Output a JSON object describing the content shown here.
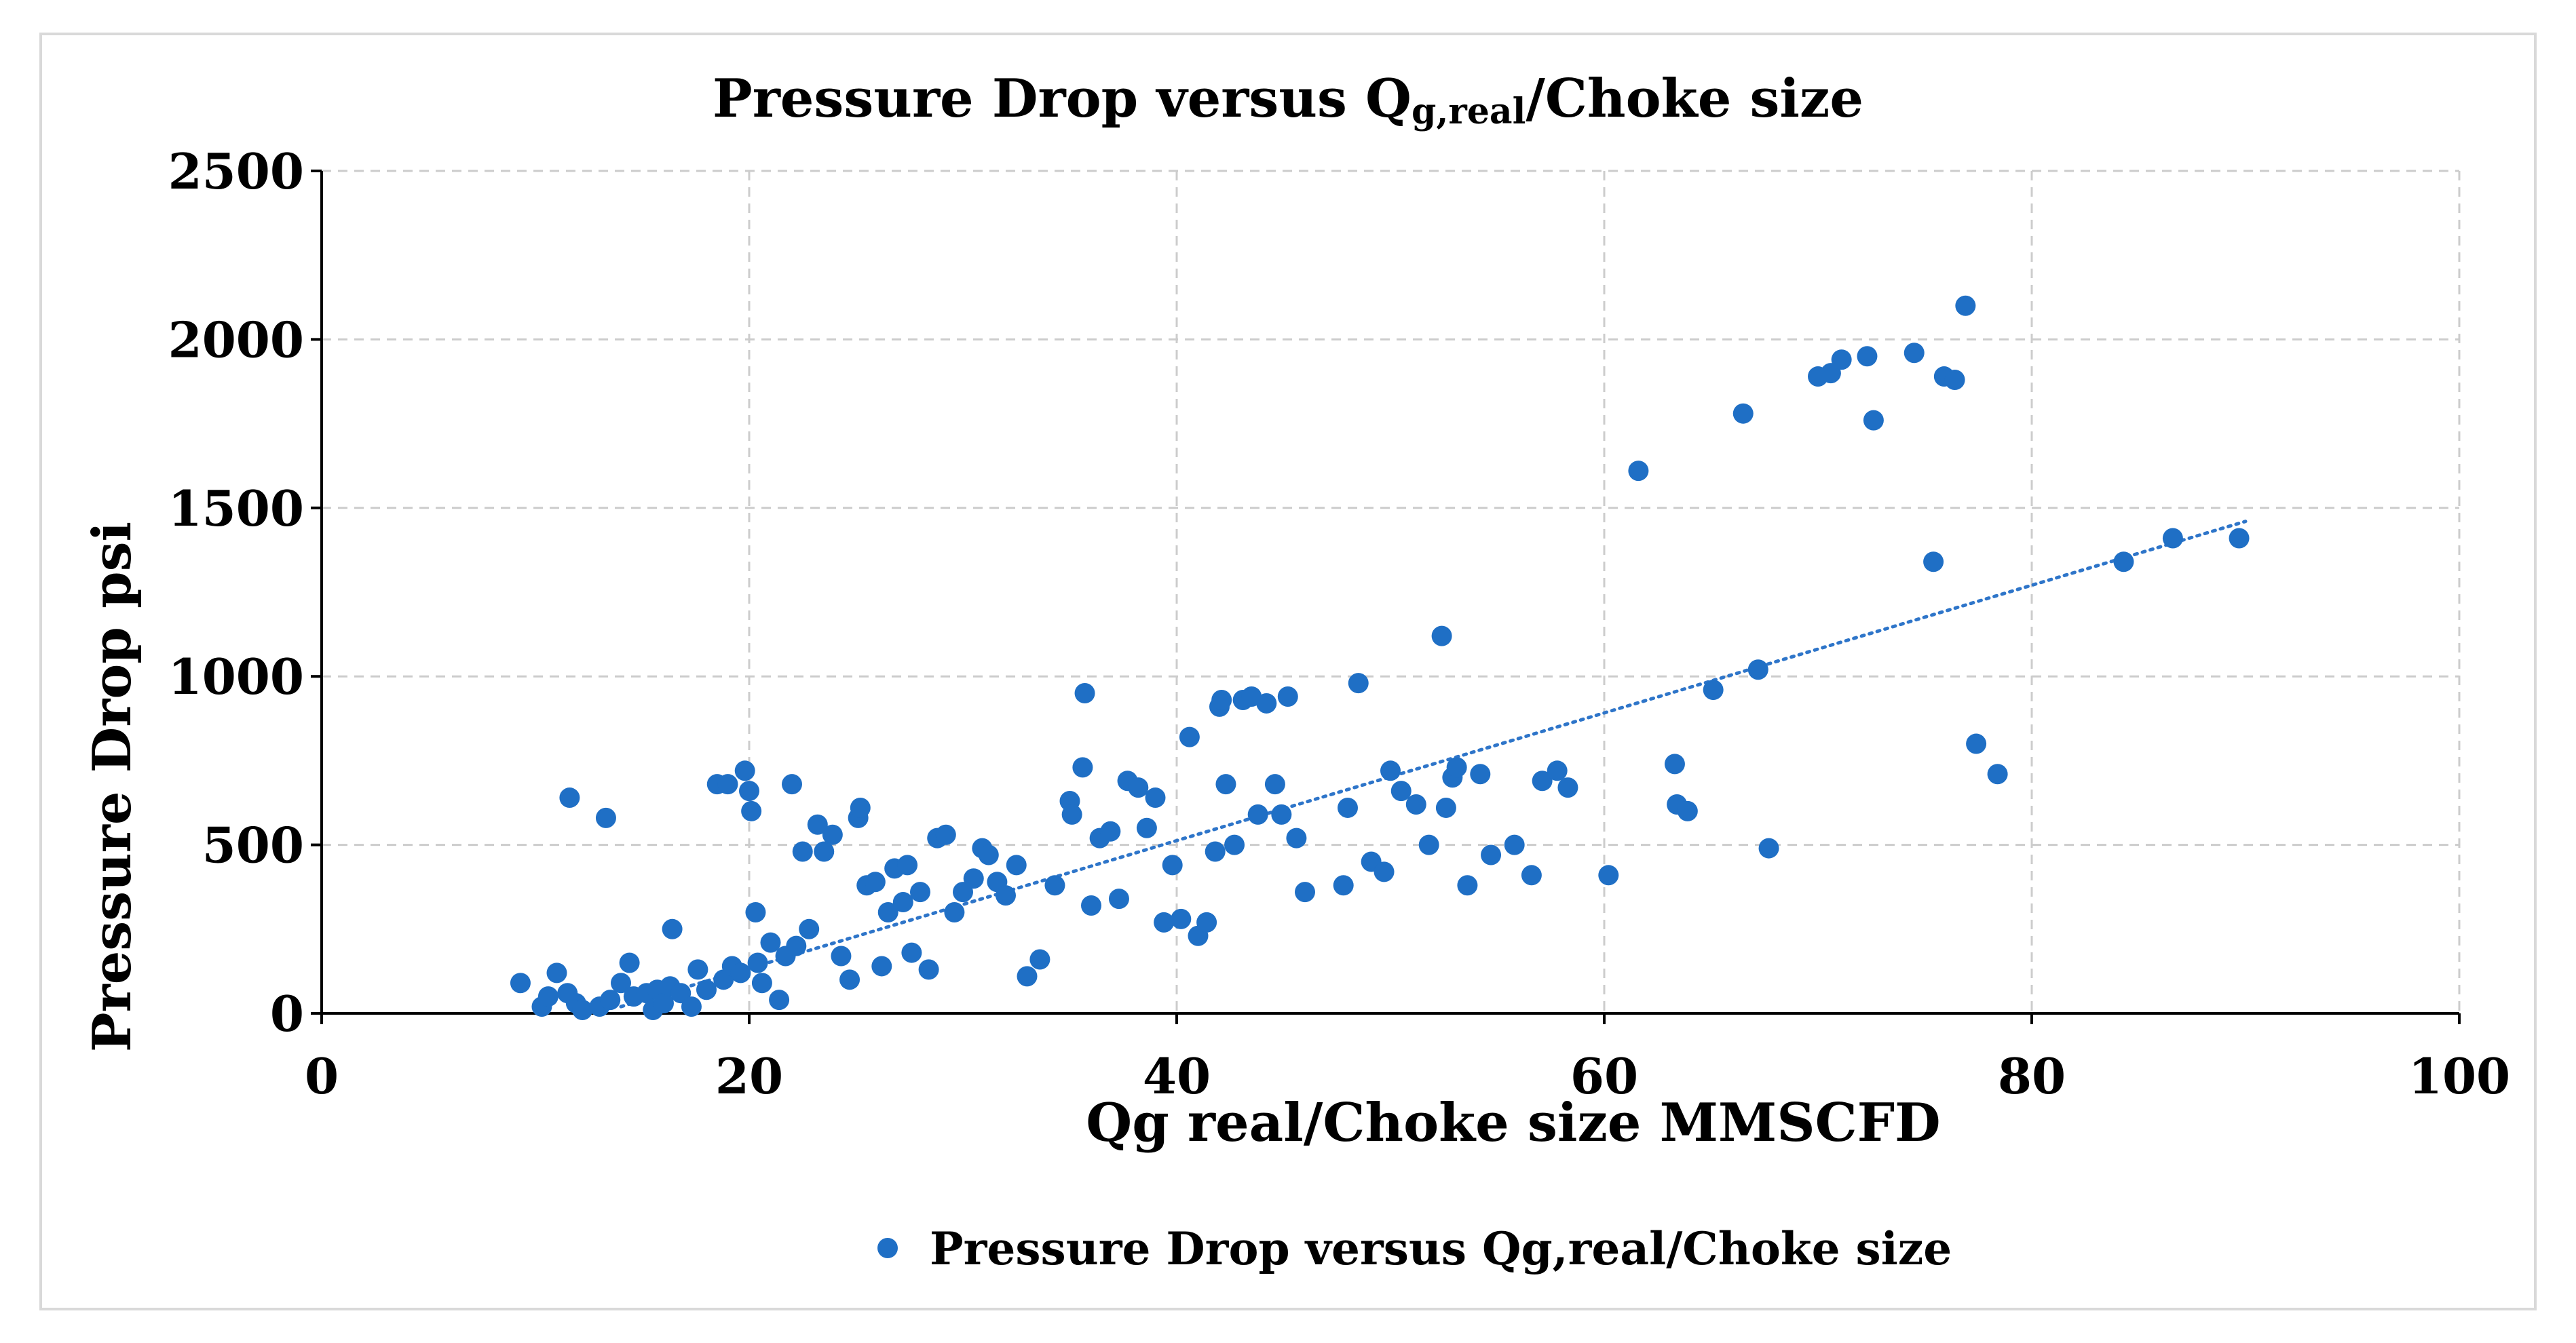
{
  "chart_data": {
    "type": "scatter",
    "title": "Pressure Drop versus Q",
    "title_subscript": "g,real",
    "title_suffix": "/Choke size",
    "xlabel": "Qg real/Choke size MMSCFD",
    "ylabel": "Pressure Drop psi",
    "xlim": [
      0,
      100
    ],
    "ylim": [
      0,
      2500
    ],
    "xticks": [
      0,
      20,
      40,
      60,
      80,
      100
    ],
    "yticks": [
      0,
      500,
      1000,
      1500,
      2000,
      2500
    ],
    "grid": true,
    "legend_position": "bottom",
    "colors": {
      "marker": "#1f6fc5",
      "trend": "#2e75c9",
      "grid": "#cccccc",
      "axis": "#000000"
    },
    "series": [
      {
        "name": "Pressure Drop versus Qg,real/Choke size",
        "points": [
          [
            9.3,
            90
          ],
          [
            10.3,
            20
          ],
          [
            10.6,
            50
          ],
          [
            11.0,
            120
          ],
          [
            11.5,
            60
          ],
          [
            11.6,
            640
          ],
          [
            11.9,
            30
          ],
          [
            12.2,
            10
          ],
          [
            13.0,
            20
          ],
          [
            13.3,
            580
          ],
          [
            13.5,
            40
          ],
          [
            14.0,
            90
          ],
          [
            14.4,
            150
          ],
          [
            14.6,
            50
          ],
          [
            15.2,
            60
          ],
          [
            15.5,
            10
          ],
          [
            15.7,
            70
          ],
          [
            16.0,
            30
          ],
          [
            16.3,
            80
          ],
          [
            16.4,
            250
          ],
          [
            16.8,
            60
          ],
          [
            17.3,
            20
          ],
          [
            17.6,
            130
          ],
          [
            18.0,
            70
          ],
          [
            18.5,
            680
          ],
          [
            18.8,
            100
          ],
          [
            19.0,
            680
          ],
          [
            19.2,
            140
          ],
          [
            19.6,
            120
          ],
          [
            19.8,
            720
          ],
          [
            20.0,
            660
          ],
          [
            20.1,
            600
          ],
          [
            20.3,
            300
          ],
          [
            20.4,
            150
          ],
          [
            20.6,
            90
          ],
          [
            21.0,
            210
          ],
          [
            21.4,
            40
          ],
          [
            21.7,
            170
          ],
          [
            22.0,
            680
          ],
          [
            22.2,
            200
          ],
          [
            22.5,
            480
          ],
          [
            22.8,
            250
          ],
          [
            23.2,
            560
          ],
          [
            23.5,
            480
          ],
          [
            23.9,
            530
          ],
          [
            24.3,
            170
          ],
          [
            24.7,
            100
          ],
          [
            25.1,
            580
          ],
          [
            25.2,
            610
          ],
          [
            25.5,
            380
          ],
          [
            25.9,
            390
          ],
          [
            26.2,
            140
          ],
          [
            26.5,
            300
          ],
          [
            26.8,
            430
          ],
          [
            27.2,
            330
          ],
          [
            27.4,
            440
          ],
          [
            27.6,
            180
          ],
          [
            28.0,
            360
          ],
          [
            28.4,
            130
          ],
          [
            28.8,
            520
          ],
          [
            29.2,
            530
          ],
          [
            29.6,
            300
          ],
          [
            30.0,
            360
          ],
          [
            30.5,
            400
          ],
          [
            30.9,
            490
          ],
          [
            31.2,
            470
          ],
          [
            31.6,
            390
          ],
          [
            32.0,
            350
          ],
          [
            32.5,
            440
          ],
          [
            33.0,
            110
          ],
          [
            33.6,
            160
          ],
          [
            34.3,
            380
          ],
          [
            35.0,
            630
          ],
          [
            35.1,
            590
          ],
          [
            35.6,
            730
          ],
          [
            35.7,
            950
          ],
          [
            36.0,
            320
          ],
          [
            36.4,
            520
          ],
          [
            36.9,
            540
          ],
          [
            37.3,
            340
          ],
          [
            37.7,
            690
          ],
          [
            38.2,
            670
          ],
          [
            38.6,
            550
          ],
          [
            39.0,
            640
          ],
          [
            39.4,
            270
          ],
          [
            39.8,
            440
          ],
          [
            40.2,
            280
          ],
          [
            40.6,
            820
          ],
          [
            41.0,
            230
          ],
          [
            41.4,
            270
          ],
          [
            41.8,
            480
          ],
          [
            42.0,
            910
          ],
          [
            42.1,
            930
          ],
          [
            42.3,
            680
          ],
          [
            42.7,
            500
          ],
          [
            43.1,
            930
          ],
          [
            43.5,
            940
          ],
          [
            43.8,
            590
          ],
          [
            44.2,
            920
          ],
          [
            44.6,
            680
          ],
          [
            44.9,
            590
          ],
          [
            45.2,
            940
          ],
          [
            45.6,
            520
          ],
          [
            46.0,
            360
          ],
          [
            47.8,
            380
          ],
          [
            48.0,
            610
          ],
          [
            48.5,
            980
          ],
          [
            49.1,
            450
          ],
          [
            49.7,
            420
          ],
          [
            50.0,
            720
          ],
          [
            50.5,
            660
          ],
          [
            51.2,
            620
          ],
          [
            51.8,
            500
          ],
          [
            52.4,
            1120
          ],
          [
            52.6,
            610
          ],
          [
            52.9,
            700
          ],
          [
            53.1,
            730
          ],
          [
            53.6,
            380
          ],
          [
            54.2,
            710
          ],
          [
            54.7,
            470
          ],
          [
            55.8,
            500
          ],
          [
            56.6,
            410
          ],
          [
            57.1,
            690
          ],
          [
            57.8,
            720
          ],
          [
            58.3,
            670
          ],
          [
            60.2,
            410
          ],
          [
            61.6,
            1610
          ],
          [
            63.3,
            740
          ],
          [
            63.4,
            620
          ],
          [
            63.9,
            600
          ],
          [
            65.1,
            960
          ],
          [
            66.5,
            1780
          ],
          [
            67.2,
            1020
          ],
          [
            67.7,
            490
          ],
          [
            70.0,
            1890
          ],
          [
            70.6,
            1900
          ],
          [
            71.1,
            1940
          ],
          [
            72.3,
            1950
          ],
          [
            72.6,
            1760
          ],
          [
            74.5,
            1960
          ],
          [
            75.4,
            1340
          ],
          [
            75.9,
            1890
          ],
          [
            76.4,
            1880
          ],
          [
            76.9,
            2100
          ],
          [
            77.4,
            800
          ],
          [
            78.4,
            710
          ],
          [
            84.3,
            1340
          ],
          [
            86.6,
            1410
          ],
          [
            89.7,
            1410
          ]
        ]
      }
    ],
    "trendline": {
      "type": "linear",
      "x": [
        14,
        90
      ],
      "y": [
        20,
        1460
      ],
      "style": "dotted"
    }
  }
}
